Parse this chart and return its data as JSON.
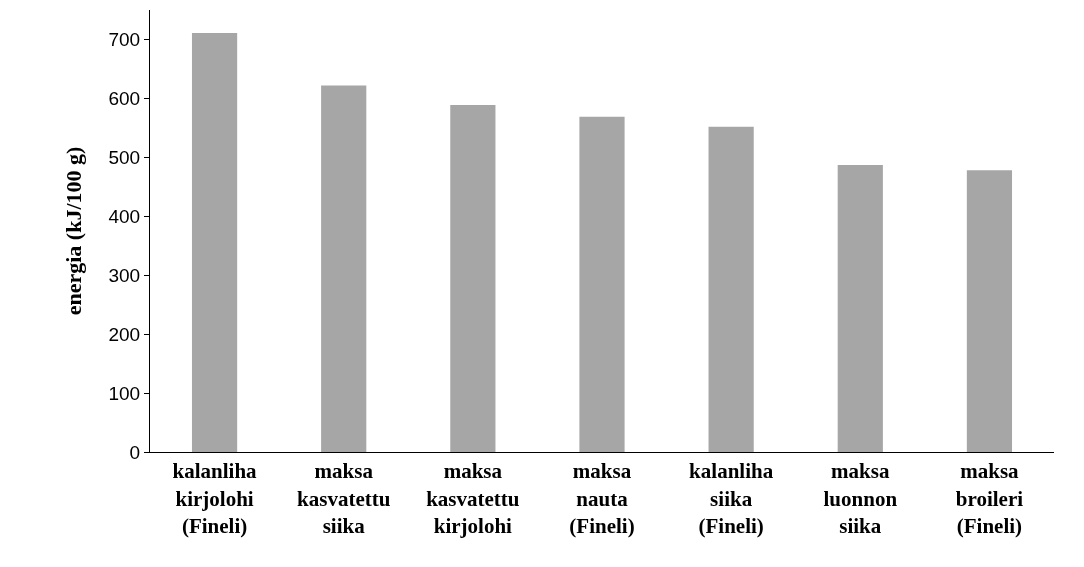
{
  "chart_data": {
    "type": "bar",
    "ylabel": "energia (kJ/100 g)",
    "categories": [
      "kalanliha\nkirjolohi\n(Fineli)",
      "maksa\nkasvatettu\nsiika",
      "maksa\nkasvatettu\nkirjolohi",
      "maksa\nnauta\n(Fineli)",
      "kalanliha\nsiika\n(Fineli)",
      "maksa\nluonnon\nsiika",
      "maksa\nbroileri\n(Fineli)"
    ],
    "values": [
      711,
      622,
      589,
      569,
      552,
      487,
      478
    ],
    "color": "#a6a6a6",
    "ylim": [
      0,
      750
    ],
    "yticks": [
      0,
      100,
      200,
      300,
      400,
      500,
      600,
      700
    ],
    "grid": false,
    "legend": false
  }
}
